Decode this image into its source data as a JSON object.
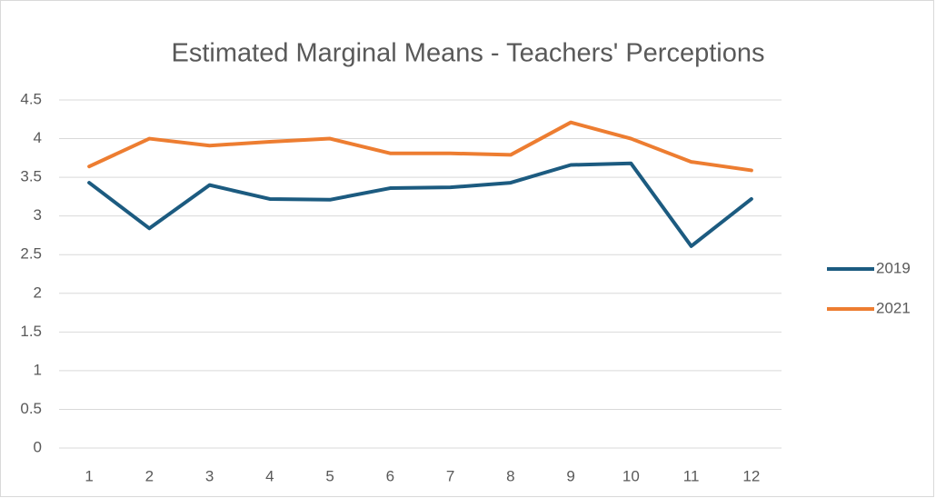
{
  "chart_data": {
    "type": "line",
    "title": "Estimated Marginal Means - Teachers' Perceptions",
    "categories": [
      "1",
      "2",
      "3",
      "4",
      "5",
      "6",
      "7",
      "8",
      "9",
      "10",
      "11",
      "12"
    ],
    "series": [
      {
        "name": "2019",
        "color": "#1c5b80",
        "values": [
          3.43,
          2.84,
          3.4,
          3.22,
          3.21,
          3.36,
          3.37,
          3.43,
          3.66,
          3.68,
          2.61,
          3.22
        ]
      },
      {
        "name": "2021",
        "color": "#ed7d31",
        "values": [
          3.64,
          4.0,
          3.91,
          3.96,
          4.0,
          3.81,
          3.81,
          3.79,
          4.21,
          4.0,
          3.7,
          3.59
        ]
      }
    ],
    "ylim": [
      0,
      4.5
    ],
    "yticks": [
      0,
      0.5,
      1,
      1.5,
      2,
      2.5,
      3,
      3.5,
      4,
      4.5
    ],
    "grid": true,
    "legend": "right"
  }
}
